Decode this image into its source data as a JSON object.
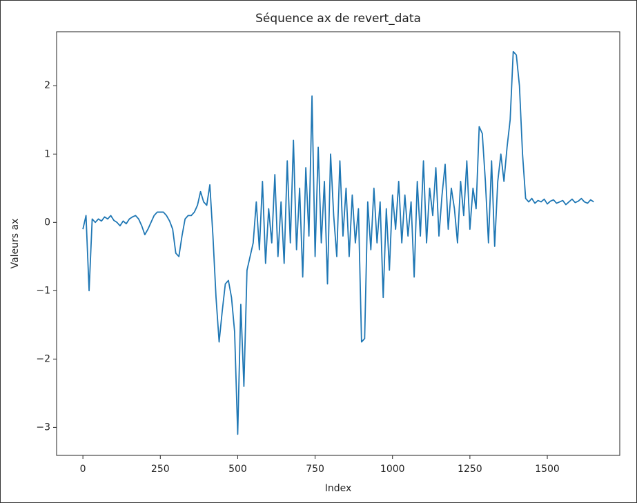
{
  "chart_data": {
    "type": "line",
    "title": "Séquence ax de revert_data",
    "xlabel": "Index",
    "ylabel": "Valeurs ax",
    "color": "#1f77b4",
    "xlim": [
      -85,
      1734
    ],
    "ylim": [
      -3.41,
      2.79
    ],
    "xticks": [
      0,
      250,
      500,
      750,
      1000,
      1250,
      1500
    ],
    "yticks": [
      {
        "value": -3,
        "label": "−3"
      },
      {
        "value": -2,
        "label": "−2"
      },
      {
        "value": -1,
        "label": "−1"
      },
      0,
      1,
      2
    ],
    "x": [
      0,
      10,
      20,
      30,
      40,
      50,
      60,
      70,
      80,
      90,
      100,
      110,
      120,
      130,
      140,
      150,
      160,
      170,
      180,
      190,
      200,
      210,
      220,
      230,
      240,
      250,
      260,
      270,
      280,
      290,
      300,
      310,
      320,
      330,
      340,
      350,
      360,
      370,
      380,
      390,
      400,
      410,
      420,
      430,
      440,
      450,
      460,
      470,
      480,
      490,
      500,
      510,
      520,
      530,
      540,
      550,
      560,
      570,
      580,
      590,
      600,
      610,
      620,
      630,
      640,
      650,
      660,
      670,
      680,
      690,
      700,
      710,
      720,
      730,
      740,
      750,
      760,
      770,
      780,
      790,
      800,
      810,
      820,
      830,
      840,
      850,
      860,
      870,
      880,
      890,
      900,
      910,
      920,
      930,
      940,
      950,
      960,
      970,
      980,
      990,
      1000,
      1010,
      1020,
      1030,
      1040,
      1050,
      1060,
      1070,
      1080,
      1090,
      1100,
      1110,
      1120,
      1130,
      1140,
      1150,
      1160,
      1170,
      1180,
      1190,
      1200,
      1210,
      1220,
      1230,
      1240,
      1250,
      1260,
      1270,
      1280,
      1290,
      1300,
      1310,
      1320,
      1330,
      1340,
      1350,
      1360,
      1370,
      1380,
      1390,
      1400,
      1410,
      1420,
      1430,
      1440,
      1450,
      1460,
      1470,
      1480,
      1490,
      1500,
      1510,
      1520,
      1530,
      1540,
      1550,
      1560,
      1570,
      1580,
      1590,
      1600,
      1610,
      1620,
      1630,
      1640,
      1650
    ],
    "values": [
      -0.1,
      0.1,
      -1.0,
      0.05,
      0,
      0.05,
      0.02,
      0.08,
      0.05,
      0.1,
      0.03,
      0,
      -0.05,
      0.02,
      -0.02,
      0.05,
      0.08,
      0.1,
      0.05,
      -0.05,
      -0.18,
      -0.1,
      0,
      0.1,
      0.15,
      0.15,
      0.15,
      0.1,
      0.02,
      -0.1,
      -0.45,
      -0.5,
      -0.2,
      0.05,
      0.1,
      0.1,
      0.15,
      0.25,
      0.45,
      0.3,
      0.25,
      0.55,
      -0.2,
      -1.1,
      -1.75,
      -1.3,
      -0.9,
      -0.85,
      -1.1,
      -1.6,
      -3.1,
      -1.2,
      -2.4,
      -0.7,
      -0.5,
      -0.3,
      0.3,
      -0.4,
      0.6,
      -0.6,
      0.2,
      -0.3,
      0.7,
      -0.5,
      0.3,
      -0.6,
      0.9,
      -0.3,
      1.2,
      -0.4,
      0.5,
      -0.8,
      0.8,
      -0.2,
      1.85,
      -0.5,
      1.1,
      -0.3,
      0.6,
      -0.9,
      1.0,
      0.1,
      -0.5,
      0.9,
      -0.2,
      0.5,
      -0.5,
      0.4,
      -0.3,
      0.2,
      -1.75,
      -1.7,
      0.3,
      -0.4,
      0.5,
      -0.3,
      0.3,
      -1.1,
      0.2,
      -0.7,
      0.4,
      -0.1,
      0.6,
      -0.3,
      0.4,
      -0.2,
      0.3,
      -0.8,
      0.6,
      -0.2,
      0.9,
      -0.3,
      0.5,
      0.1,
      0.8,
      -0.2,
      0.4,
      0.85,
      -0.1,
      0.5,
      0.2,
      -0.3,
      0.6,
      0.1,
      0.9,
      -0.1,
      0.5,
      0.2,
      1.4,
      1.3,
      0.6,
      -0.3,
      0.9,
      -0.35,
      0.6,
      1.0,
      0.6,
      1.1,
      1.5,
      2.5,
      2.45,
      2.0,
      1.0,
      0.35,
      0.3,
      0.35,
      0.28,
      0.32,
      0.3,
      0.34,
      0.27,
      0.31,
      0.33,
      0.28,
      0.3,
      0.32,
      0.26,
      0.3,
      0.34,
      0.29,
      0.31,
      0.35,
      0.3,
      0.28,
      0.33,
      0.3
    ]
  }
}
